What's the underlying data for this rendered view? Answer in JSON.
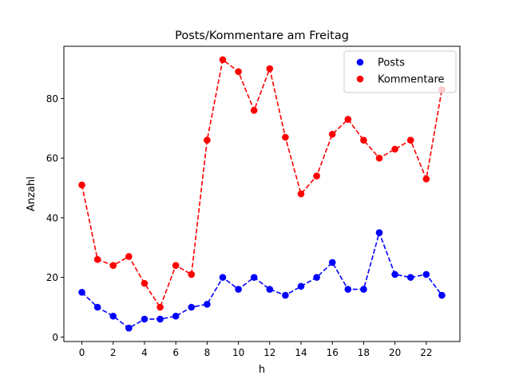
{
  "chart_data": {
    "type": "line",
    "title": "Posts/Kommentare am Freitag",
    "xlabel": "h",
    "ylabel": "Anzahl",
    "x": [
      0,
      1,
      2,
      3,
      4,
      5,
      6,
      7,
      8,
      9,
      10,
      11,
      12,
      13,
      14,
      15,
      16,
      17,
      18,
      19,
      20,
      21,
      22,
      23
    ],
    "x_ticks": [
      0,
      2,
      4,
      6,
      8,
      10,
      12,
      14,
      16,
      18,
      20,
      22
    ],
    "y_ticks": [
      0,
      20,
      40,
      60,
      80
    ],
    "xlim": [
      -1.15,
      24.15
    ],
    "ylim": [
      -1.5,
      97.5
    ],
    "legend_position": "top-right",
    "grid": false,
    "series": [
      {
        "name": "Posts",
        "color": "#0000ff",
        "line_style": "dashed",
        "marker": "circle",
        "values": [
          15,
          10,
          7,
          3,
          6,
          6,
          7,
          10,
          11,
          20,
          16,
          20,
          16,
          14,
          17,
          20,
          25,
          16,
          16,
          35,
          21,
          20,
          21,
          14
        ]
      },
      {
        "name": "Kommentare",
        "color": "#ff0000",
        "line_style": "dashed",
        "marker": "circle",
        "values": [
          51,
          26,
          24,
          27,
          18,
          10,
          24,
          21,
          66,
          93,
          89,
          76,
          90,
          67,
          48,
          54,
          68,
          73,
          66,
          60,
          63,
          66,
          53,
          83
        ]
      }
    ]
  }
}
